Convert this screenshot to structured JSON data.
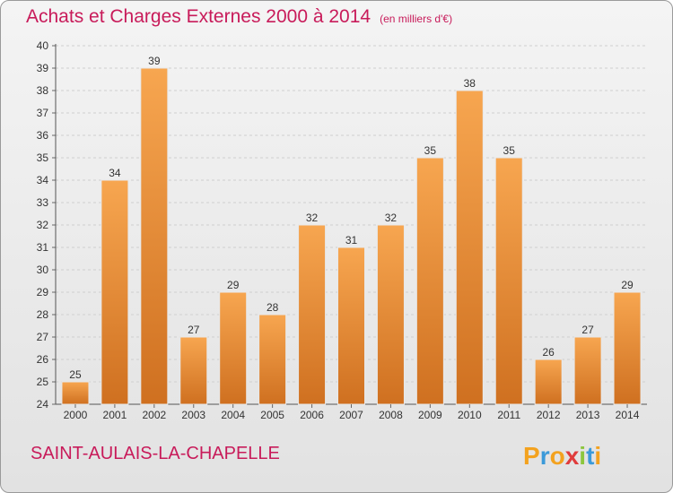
{
  "title": "Achats et Charges Externes 2000 à 2014",
  "unit_note": "(en milliers d'€)",
  "commune": "SAINT-AULAIS-LA-CHAPELLE",
  "logo_text": "Proxiti",
  "colors": {
    "title": "#c81b5a",
    "bar_top": "#f7a650",
    "bar_bottom": "#cf7020",
    "grid": "#cfcfcf"
  },
  "chart_data": {
    "type": "bar",
    "title": "Achats et Charges Externes 2000 à 2014",
    "subtitle": "(en milliers d'€)",
    "categories": [
      "2000",
      "2001",
      "2002",
      "2003",
      "2004",
      "2005",
      "2006",
      "2007",
      "2008",
      "2009",
      "2010",
      "2011",
      "2012",
      "2013",
      "2014"
    ],
    "values": [
      25,
      34,
      39,
      27,
      29,
      28,
      32,
      31,
      32,
      35,
      38,
      35,
      26,
      27,
      29
    ],
    "ylim": [
      24,
      40
    ],
    "yticks": [
      24,
      25,
      26,
      27,
      28,
      29,
      30,
      31,
      32,
      33,
      34,
      35,
      36,
      37,
      38,
      39,
      40
    ],
    "grid": true,
    "data_labels": true
  }
}
